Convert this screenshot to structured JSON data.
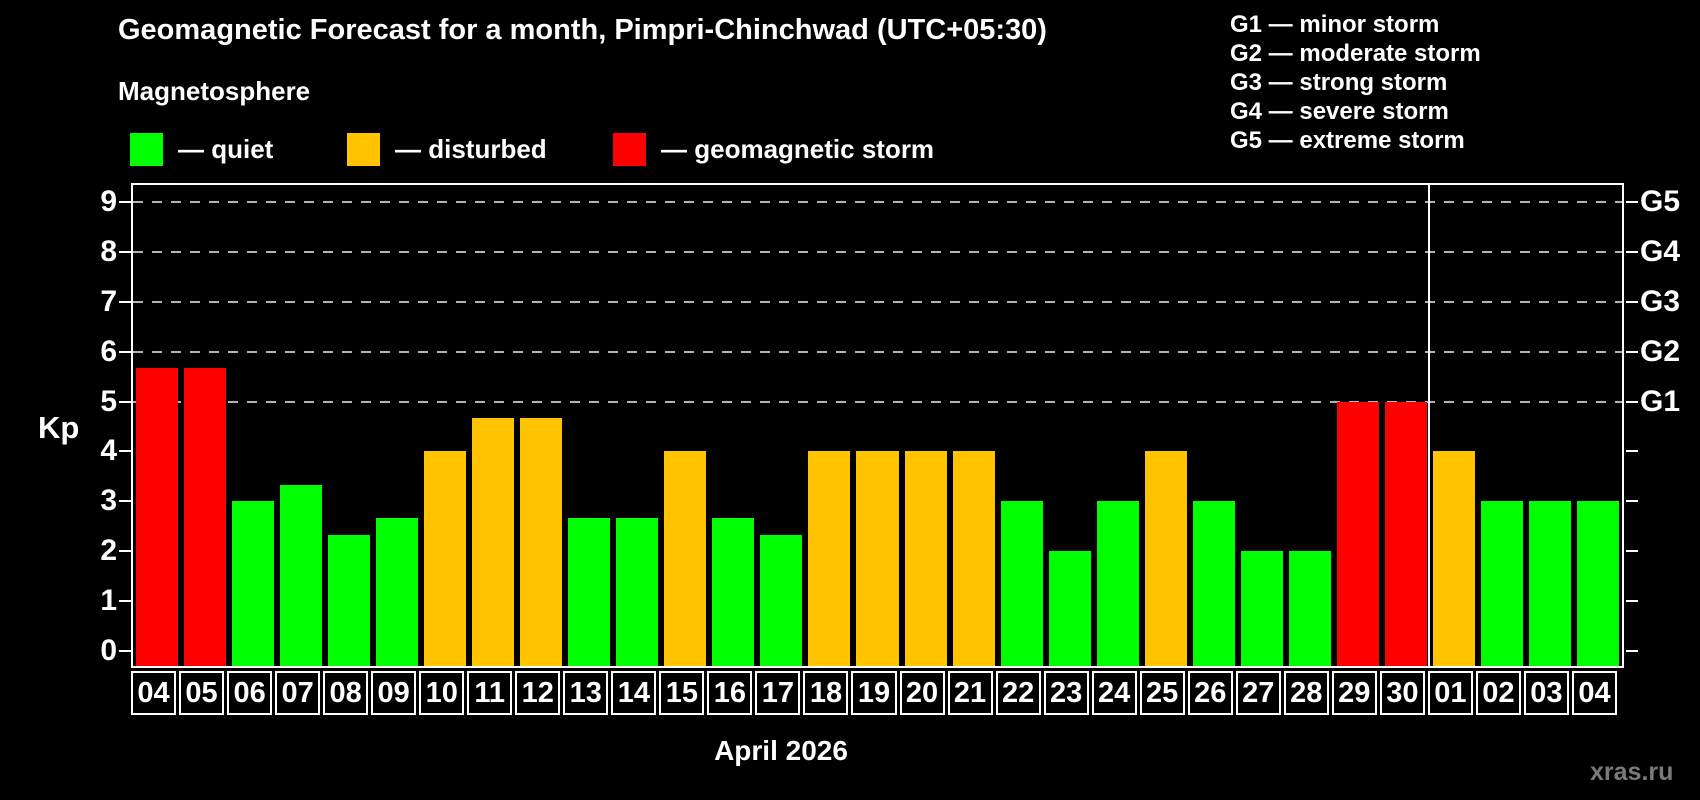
{
  "header": {
    "title": "Geomagnetic Forecast for a month, Pimpri-Chinchwad (UTC+05:30)",
    "subtitle": "Magnetosphere"
  },
  "legend": {
    "items": [
      {
        "label": "— quiet",
        "status": "quiet",
        "color": "#00ff00"
      },
      {
        "label": "— disturbed",
        "status": "disturbed",
        "color": "#ffc300"
      },
      {
        "label": "— geomagnetic storm",
        "status": "storm",
        "color": "#ff0000"
      }
    ]
  },
  "storm_scale": {
    "items": [
      "G1 — minor storm",
      "G2 — moderate storm",
      "G3 — strong storm",
      "G4 — severe storm",
      "G5 — extreme storm"
    ]
  },
  "watermark": "xras.ru",
  "chart_data": {
    "type": "bar",
    "title": "Geomagnetic Forecast for a month, Pimpri-Chinchwad (UTC+05:30)",
    "xlabel": "April 2026",
    "ylabel": "Kp",
    "ylim": [
      0,
      9.4
    ],
    "yticks": [
      0,
      1,
      2,
      3,
      4,
      5,
      6,
      7,
      8,
      9
    ],
    "grid": "dashed-horizontal",
    "grid_levels": [
      5,
      6,
      7,
      8,
      9
    ],
    "right_axis": [
      {
        "kp": 5,
        "label": "G1"
      },
      {
        "kp": 6,
        "label": "G2"
      },
      {
        "kp": 7,
        "label": "G3"
      },
      {
        "kp": 8,
        "label": "G4"
      },
      {
        "kp": 9,
        "label": "G5"
      }
    ],
    "categories": [
      "04",
      "05",
      "06",
      "07",
      "08",
      "09",
      "10",
      "11",
      "12",
      "13",
      "14",
      "15",
      "16",
      "17",
      "18",
      "19",
      "20",
      "21",
      "22",
      "23",
      "24",
      "25",
      "26",
      "27",
      "28",
      "29",
      "30",
      "01",
      "02",
      "03",
      "04"
    ],
    "values": [
      5.67,
      5.67,
      3.0,
      3.33,
      2.33,
      2.67,
      4.0,
      4.67,
      4.67,
      2.67,
      2.67,
      4.0,
      2.67,
      2.33,
      4.0,
      4.0,
      4.0,
      4.0,
      3.0,
      2.0,
      3.0,
      4.0,
      3.0,
      2.0,
      2.0,
      5.0,
      5.0,
      4.0,
      3.0,
      3.0,
      3.0
    ],
    "statuses": [
      "storm",
      "storm",
      "quiet",
      "quiet",
      "quiet",
      "quiet",
      "disturbed",
      "disturbed",
      "disturbed",
      "quiet",
      "quiet",
      "disturbed",
      "quiet",
      "quiet",
      "disturbed",
      "disturbed",
      "disturbed",
      "disturbed",
      "quiet",
      "quiet",
      "quiet",
      "disturbed",
      "quiet",
      "quiet",
      "quiet",
      "storm",
      "storm",
      "disturbed",
      "quiet",
      "quiet",
      "quiet"
    ],
    "month_separator_after_index": 26,
    "legend_position": "top-left",
    "colors": {
      "quiet": "#00ff00",
      "disturbed": "#ffc300",
      "storm": "#ff0000",
      "grid": "#b3b3b3",
      "axis": "#ffffff",
      "background": "#000000",
      "watermark": "#7a7a7a"
    }
  }
}
